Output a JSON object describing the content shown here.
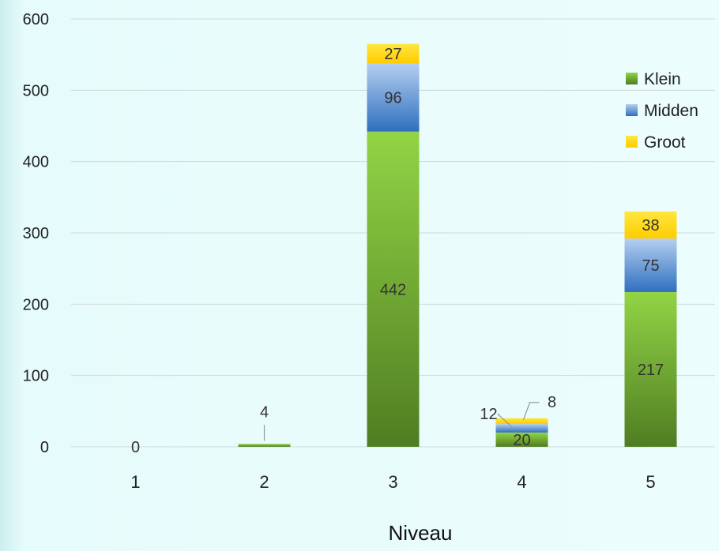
{
  "chart_data": {
    "type": "bar",
    "stacked": true,
    "categories": [
      "1",
      "2",
      "3",
      "4",
      "5"
    ],
    "series": [
      {
        "name": "Klein",
        "values": [
          0,
          4,
          442,
          20,
          217
        ],
        "color": "#5f9a2c"
      },
      {
        "name": "Midden",
        "values": [
          0,
          0,
          96,
          12,
          75
        ],
        "color": "#3f7bc4"
      },
      {
        "name": "Groot",
        "values": [
          0,
          0,
          27,
          8,
          38
        ],
        "color": "#ffd500"
      }
    ],
    "data_labels": [
      {
        "category": "1",
        "series": "Klein",
        "text": "0"
      },
      {
        "category": "2",
        "series": "Klein",
        "text": "4"
      },
      {
        "category": "3",
        "series": "Klein",
        "text": "442"
      },
      {
        "category": "3",
        "series": "Midden",
        "text": "96"
      },
      {
        "category": "3",
        "series": "Groot",
        "text": "27"
      },
      {
        "category": "4",
        "series": "Klein",
        "text": "20"
      },
      {
        "category": "4",
        "series": "Midden",
        "text": "12"
      },
      {
        "category": "4",
        "series": "Groot",
        "text": "8"
      },
      {
        "category": "5",
        "series": "Klein",
        "text": "217"
      },
      {
        "category": "5",
        "series": "Midden",
        "text": "75"
      },
      {
        "category": "5",
        "series": "Groot",
        "text": "38"
      }
    ],
    "title": "",
    "xlabel": "Niveau",
    "ylabel": "",
    "ylim": [
      0,
      600
    ],
    "yticks": [
      0,
      100,
      200,
      300,
      400,
      500,
      600
    ],
    "grid": true,
    "legend_position": "right"
  }
}
